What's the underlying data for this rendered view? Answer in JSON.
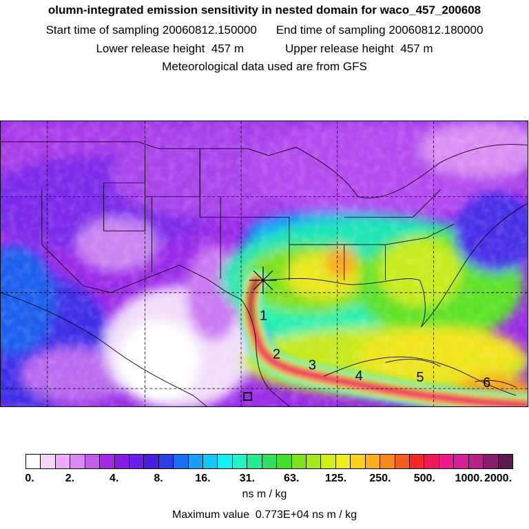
{
  "header": {
    "title": "olumn-integrated emission sensitivity in nested domain for waco_457_200608",
    "start_label": "Start time of sampling",
    "start_value": "20060812.150000",
    "end_label": "End time of sampling",
    "end_value": "20060812.180000",
    "lower_label": "Lower release height",
    "lower_value": "457 m",
    "upper_label": "Upper release height",
    "upper_value": "457 m",
    "met_line": "Meteorological data used are from GFS"
  },
  "map": {
    "trajectory_labels": [
      "1",
      "2",
      "3",
      "4",
      "5",
      "6"
    ],
    "release_marker": "star-icon",
    "receptor_marker": "square-icon"
  },
  "colorbar": {
    "colors": [
      "#ffffff",
      "#f6d6fb",
      "#eeaaf6",
      "#d888f0",
      "#c35bec",
      "#a428e6",
      "#8a1be6",
      "#6a1ee6",
      "#4a1de0",
      "#2c3fe6",
      "#1a6ef2",
      "#189ff6",
      "#13c9f6",
      "#11f0f2",
      "#22f4c7",
      "#22ee92",
      "#2ce25c",
      "#41e02a",
      "#7ce21a",
      "#a6e81a",
      "#d2ee1a",
      "#f0ec1e",
      "#fbd21a",
      "#f9b01a",
      "#f78a1a",
      "#f55c1e",
      "#f32a24",
      "#f01a5a",
      "#ec1a8a",
      "#d8209a",
      "#b8208a",
      "#8a1c70",
      "#5a1a50"
    ],
    "ticks": [
      "0.",
      "2.",
      "4.",
      "8.",
      "16.",
      "31.",
      "63.",
      "125.",
      "250.",
      "500.",
      "1000.",
      "2000."
    ],
    "units": "ns m / kg",
    "max_label": "Maximum value",
    "max_value": "0.773E+04 ns m / kg"
  }
}
